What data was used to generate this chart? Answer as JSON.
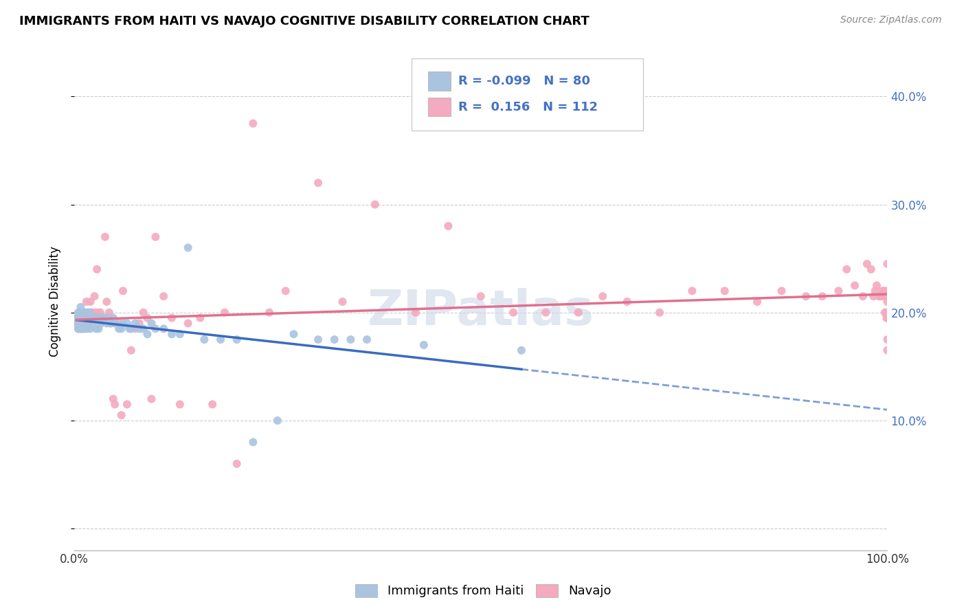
{
  "title": "IMMIGRANTS FROM HAITI VS NAVAJO COGNITIVE DISABILITY CORRELATION CHART",
  "source": "Source: ZipAtlas.com",
  "ylabel": "Cognitive Disability",
  "xlim": [
    0.0,
    1.0
  ],
  "ylim": [
    -0.02,
    0.44
  ],
  "haiti_R": -0.099,
  "haiti_N": 80,
  "navajo_R": 0.156,
  "navajo_N": 112,
  "haiti_color": "#aac4e0",
  "navajo_color": "#f4aabf",
  "haiti_line_color": "#3a6bbf",
  "navajo_line_color": "#e07090",
  "legend_label_haiti": "Immigrants from Haiti",
  "legend_label_navajo": "Navajo",
  "watermark": "ZIPatlas",
  "haiti_scatter_x": [
    0.003,
    0.004,
    0.005,
    0.005,
    0.006,
    0.006,
    0.007,
    0.007,
    0.008,
    0.008,
    0.008,
    0.009,
    0.009,
    0.009,
    0.01,
    0.01,
    0.01,
    0.01,
    0.011,
    0.011,
    0.012,
    0.012,
    0.012,
    0.013,
    0.013,
    0.014,
    0.014,
    0.015,
    0.015,
    0.016,
    0.016,
    0.017,
    0.018,
    0.019,
    0.02,
    0.021,
    0.022,
    0.023,
    0.025,
    0.026,
    0.027,
    0.028,
    0.03,
    0.032,
    0.033,
    0.035,
    0.037,
    0.04,
    0.042,
    0.045,
    0.048,
    0.05,
    0.055,
    0.058,
    0.06,
    0.065,
    0.068,
    0.07,
    0.075,
    0.08,
    0.085,
    0.09,
    0.095,
    0.1,
    0.11,
    0.12,
    0.13,
    0.14,
    0.16,
    0.18,
    0.2,
    0.22,
    0.25,
    0.27,
    0.3,
    0.32,
    0.34,
    0.36,
    0.43,
    0.55
  ],
  "haiti_scatter_y": [
    0.19,
    0.195,
    0.185,
    0.2,
    0.19,
    0.195,
    0.185,
    0.2,
    0.195,
    0.185,
    0.205,
    0.19,
    0.195,
    0.185,
    0.195,
    0.19,
    0.2,
    0.185,
    0.195,
    0.19,
    0.195,
    0.185,
    0.2,
    0.195,
    0.19,
    0.2,
    0.185,
    0.195,
    0.19,
    0.2,
    0.185,
    0.195,
    0.19,
    0.2,
    0.185,
    0.195,
    0.195,
    0.19,
    0.195,
    0.195,
    0.185,
    0.195,
    0.185,
    0.195,
    0.19,
    0.195,
    0.195,
    0.19,
    0.195,
    0.19,
    0.195,
    0.19,
    0.185,
    0.185,
    0.19,
    0.19,
    0.185,
    0.185,
    0.19,
    0.185,
    0.185,
    0.18,
    0.19,
    0.185,
    0.185,
    0.18,
    0.18,
    0.26,
    0.175,
    0.175,
    0.175,
    0.08,
    0.1,
    0.18,
    0.175,
    0.175,
    0.175,
    0.175,
    0.17,
    0.165
  ],
  "navajo_scatter_x": [
    0.003,
    0.004,
    0.005,
    0.006,
    0.006,
    0.007,
    0.007,
    0.008,
    0.009,
    0.01,
    0.01,
    0.01,
    0.011,
    0.011,
    0.012,
    0.012,
    0.013,
    0.014,
    0.015,
    0.015,
    0.016,
    0.017,
    0.018,
    0.019,
    0.02,
    0.021,
    0.022,
    0.023,
    0.025,
    0.027,
    0.028,
    0.03,
    0.032,
    0.035,
    0.038,
    0.04,
    0.043,
    0.045,
    0.048,
    0.05,
    0.055,
    0.058,
    0.06,
    0.065,
    0.07,
    0.075,
    0.08,
    0.085,
    0.09,
    0.095,
    0.1,
    0.11,
    0.12,
    0.13,
    0.14,
    0.155,
    0.17,
    0.185,
    0.2,
    0.22,
    0.24,
    0.26,
    0.3,
    0.33,
    0.37,
    0.42,
    0.46,
    0.5,
    0.54,
    0.58,
    0.62,
    0.65,
    0.68,
    0.72,
    0.76,
    0.8,
    0.84,
    0.87,
    0.9,
    0.92,
    0.94,
    0.95,
    0.96,
    0.97,
    0.975,
    0.98,
    0.983,
    0.985,
    0.987,
    0.99,
    0.992,
    0.994,
    0.995,
    0.996,
    0.997,
    0.998,
    0.999,
    0.999,
    1.0,
    1.0,
    1.0,
    1.0,
    1.0,
    1.0,
    1.0,
    1.0,
    1.0,
    1.0,
    1.0,
    1.0,
    1.0,
    1.0
  ],
  "navajo_scatter_y": [
    0.195,
    0.19,
    0.185,
    0.2,
    0.195,
    0.19,
    0.185,
    0.2,
    0.195,
    0.19,
    0.195,
    0.185,
    0.2,
    0.19,
    0.195,
    0.2,
    0.19,
    0.195,
    0.21,
    0.195,
    0.195,
    0.2,
    0.19,
    0.195,
    0.21,
    0.2,
    0.195,
    0.2,
    0.215,
    0.2,
    0.24,
    0.2,
    0.2,
    0.195,
    0.27,
    0.21,
    0.2,
    0.19,
    0.12,
    0.115,
    0.19,
    0.105,
    0.22,
    0.115,
    0.165,
    0.185,
    0.19,
    0.2,
    0.195,
    0.12,
    0.27,
    0.215,
    0.195,
    0.115,
    0.19,
    0.195,
    0.115,
    0.2,
    0.06,
    0.375,
    0.2,
    0.22,
    0.32,
    0.21,
    0.3,
    0.2,
    0.28,
    0.215,
    0.2,
    0.2,
    0.2,
    0.215,
    0.21,
    0.2,
    0.22,
    0.22,
    0.21,
    0.22,
    0.215,
    0.215,
    0.22,
    0.24,
    0.225,
    0.215,
    0.245,
    0.24,
    0.215,
    0.22,
    0.225,
    0.215,
    0.215,
    0.22,
    0.215,
    0.22,
    0.2,
    0.215,
    0.195,
    0.2,
    0.215,
    0.175,
    0.22,
    0.165,
    0.21,
    0.215,
    0.245,
    0.215,
    0.215,
    0.2,
    0.22,
    0.215,
    0.195,
    0.2
  ]
}
